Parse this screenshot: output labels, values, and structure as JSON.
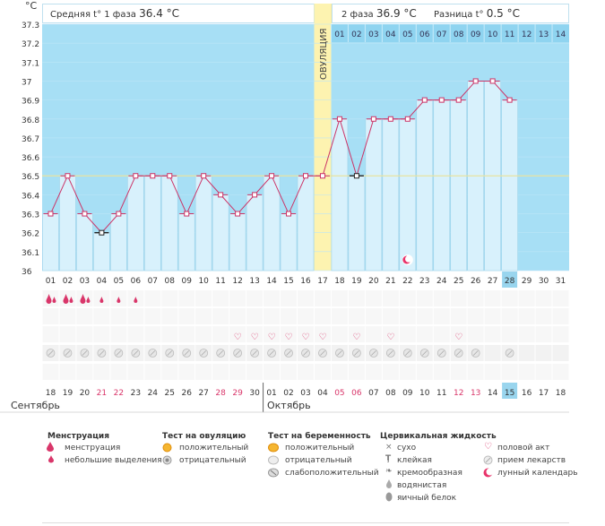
{
  "header": {
    "unit_symbol": "°C",
    "phase1_label": "Средняя t° 1 фаза",
    "phase1_value": "36.4 °C",
    "phase2_label": "2 фаза",
    "phase2_value": "36.9 °C",
    "diff_label": "Разница t°",
    "diff_value": "0.5 °C"
  },
  "ovulation_label": "ОВУЛЯЦИЯ",
  "colors": {
    "phase1_bg": "#a7dff5",
    "phase2_bg": "#a7dff5",
    "bar_fill": "#d8f1fc",
    "bar_stroke": "#9fd3ea",
    "ovulation": "#fdf3b0",
    "line": "#cc3366",
    "cover_line": "#e9e3a0",
    "highlight_day": "#99d5ee"
  },
  "chart_data": {
    "type": "line",
    "title": "",
    "ylabel": "°C",
    "ylim": [
      36,
      37.3
    ],
    "yticks": [
      "36",
      "36.1",
      "36.2",
      "36.3",
      "36.4",
      "36.5",
      "36.6",
      "36.7",
      "36.8",
      "36.9",
      "37",
      "37.1",
      "37.2",
      "37.3"
    ],
    "cover_line": 36.5,
    "ovulation_day": 17,
    "cycle_days": [
      "01",
      "02",
      "03",
      "04",
      "05",
      "06",
      "07",
      "08",
      "09",
      "10",
      "11",
      "12",
      "13",
      "14",
      "15",
      "16",
      "17",
      "18",
      "19",
      "20",
      "21",
      "22",
      "23",
      "24",
      "25",
      "26",
      "27",
      "28",
      "29",
      "30",
      "31"
    ],
    "current_day": "28",
    "phase2_day_labels": [
      "01",
      "02",
      "03",
      "04",
      "05",
      "06",
      "07",
      "08",
      "09",
      "10",
      "11",
      "12",
      "13",
      "14"
    ],
    "temperatures": [
      36.3,
      36.5,
      36.3,
      36.2,
      36.3,
      36.5,
      36.5,
      36.5,
      36.3,
      36.5,
      36.4,
      36.3,
      36.4,
      36.5,
      36.3,
      36.5,
      36.5,
      36.8,
      36.5,
      36.8,
      36.8,
      36.8,
      36.9,
      36.9,
      36.9,
      37.0,
      37.0,
      36.9
    ],
    "marked_low_points": [
      4,
      19
    ],
    "moon_day": 22,
    "calendar_dates": [
      "18",
      "19",
      "20",
      "21",
      "22",
      "23",
      "24",
      "25",
      "26",
      "27",
      "28",
      "29",
      "30",
      "01",
      "02",
      "03",
      "04",
      "05",
      "06",
      "07",
      "08",
      "09",
      "10",
      "11",
      "12",
      "13",
      "14",
      "15",
      "16",
      "17",
      "18"
    ],
    "weekend_days": [
      4,
      5,
      11,
      12,
      18,
      19,
      25,
      26
    ],
    "current_date": "15",
    "month1": "Сентябрь",
    "month2": "Октябрь",
    "menstruation_big": [
      1,
      2,
      3
    ],
    "menstruation_small": [
      4,
      5,
      6
    ],
    "intercourse_days": [
      12,
      13,
      14,
      15,
      16,
      17,
      19,
      21,
      25
    ],
    "pregnancy_test_days": [
      1,
      2,
      3,
      4,
      5,
      6,
      7,
      8,
      9,
      10,
      11,
      12,
      13,
      14,
      15,
      16,
      17,
      18,
      19,
      20,
      21,
      22,
      23,
      24,
      25,
      26,
      28
    ]
  },
  "legend": {
    "menstruation": {
      "title": "Менструация",
      "items": [
        "менструация",
        "небольшие выделения"
      ]
    },
    "ovulation_test": {
      "title": "Тест на овуляцию",
      "items": [
        "положительный",
        "отрицательный"
      ]
    },
    "pregnancy_test": {
      "title": "Тест на беременность",
      "items": [
        "положительный",
        "отрицательный",
        "слабоположительный"
      ]
    },
    "cervical": {
      "title": "Цервикальная жидкость",
      "items": [
        "сухо",
        "клейкая",
        "кремообразная",
        "водянистая",
        "яичный белок"
      ]
    },
    "other": {
      "items": [
        "половой акт",
        "прием лекарств",
        "лунный календарь"
      ]
    }
  }
}
